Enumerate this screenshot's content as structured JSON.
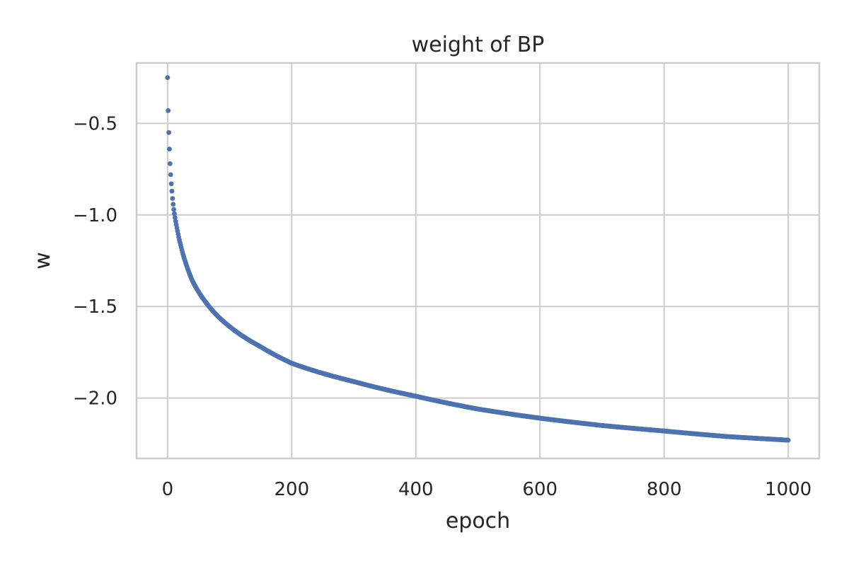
{
  "chart_data": {
    "type": "scatter",
    "title": "weight of BP",
    "xlabel": "epoch",
    "ylabel": "w",
    "xlim": [
      -50,
      1050
    ],
    "ylim": [
      -2.33,
      -0.17
    ],
    "xticks": [
      0,
      200,
      400,
      600,
      800,
      1000
    ],
    "xtick_labels": [
      "0",
      "200",
      "400",
      "600",
      "800",
      "1000"
    ],
    "yticks": [
      -0.5,
      -1.0,
      -1.5,
      -2.0
    ],
    "ytick_labels": [
      "−0.5",
      "−1.0",
      "−1.5",
      "−2.0"
    ],
    "grid": true,
    "color": "#4c72b0",
    "series": [
      {
        "x_range": [
          0,
          1000
        ],
        "x_step": 1,
        "sample_points": [
          {
            "x": 0,
            "y": -0.25
          },
          {
            "x": 1,
            "y": -0.43
          },
          {
            "x": 2,
            "y": -0.55
          },
          {
            "x": 3,
            "y": -0.64
          },
          {
            "x": 4,
            "y": -0.72
          },
          {
            "x": 5,
            "y": -0.78
          },
          {
            "x": 6,
            "y": -0.83
          },
          {
            "x": 7,
            "y": -0.87
          },
          {
            "x": 8,
            "y": -0.91
          },
          {
            "x": 10,
            "y": -0.97
          },
          {
            "x": 15,
            "y": -1.07
          },
          {
            "x": 20,
            "y": -1.15
          },
          {
            "x": 30,
            "y": -1.27
          },
          {
            "x": 40,
            "y": -1.36
          },
          {
            "x": 60,
            "y": -1.47
          },
          {
            "x": 80,
            "y": -1.55
          },
          {
            "x": 100,
            "y": -1.61
          },
          {
            "x": 150,
            "y": -1.72
          },
          {
            "x": 200,
            "y": -1.81
          },
          {
            "x": 300,
            "y": -1.91
          },
          {
            "x": 400,
            "y": -1.99
          },
          {
            "x": 500,
            "y": -2.06
          },
          {
            "x": 600,
            "y": -2.11
          },
          {
            "x": 700,
            "y": -2.15
          },
          {
            "x": 800,
            "y": -2.18
          },
          {
            "x": 900,
            "y": -2.21
          },
          {
            "x": 1000,
            "y": -2.23
          }
        ]
      }
    ]
  }
}
